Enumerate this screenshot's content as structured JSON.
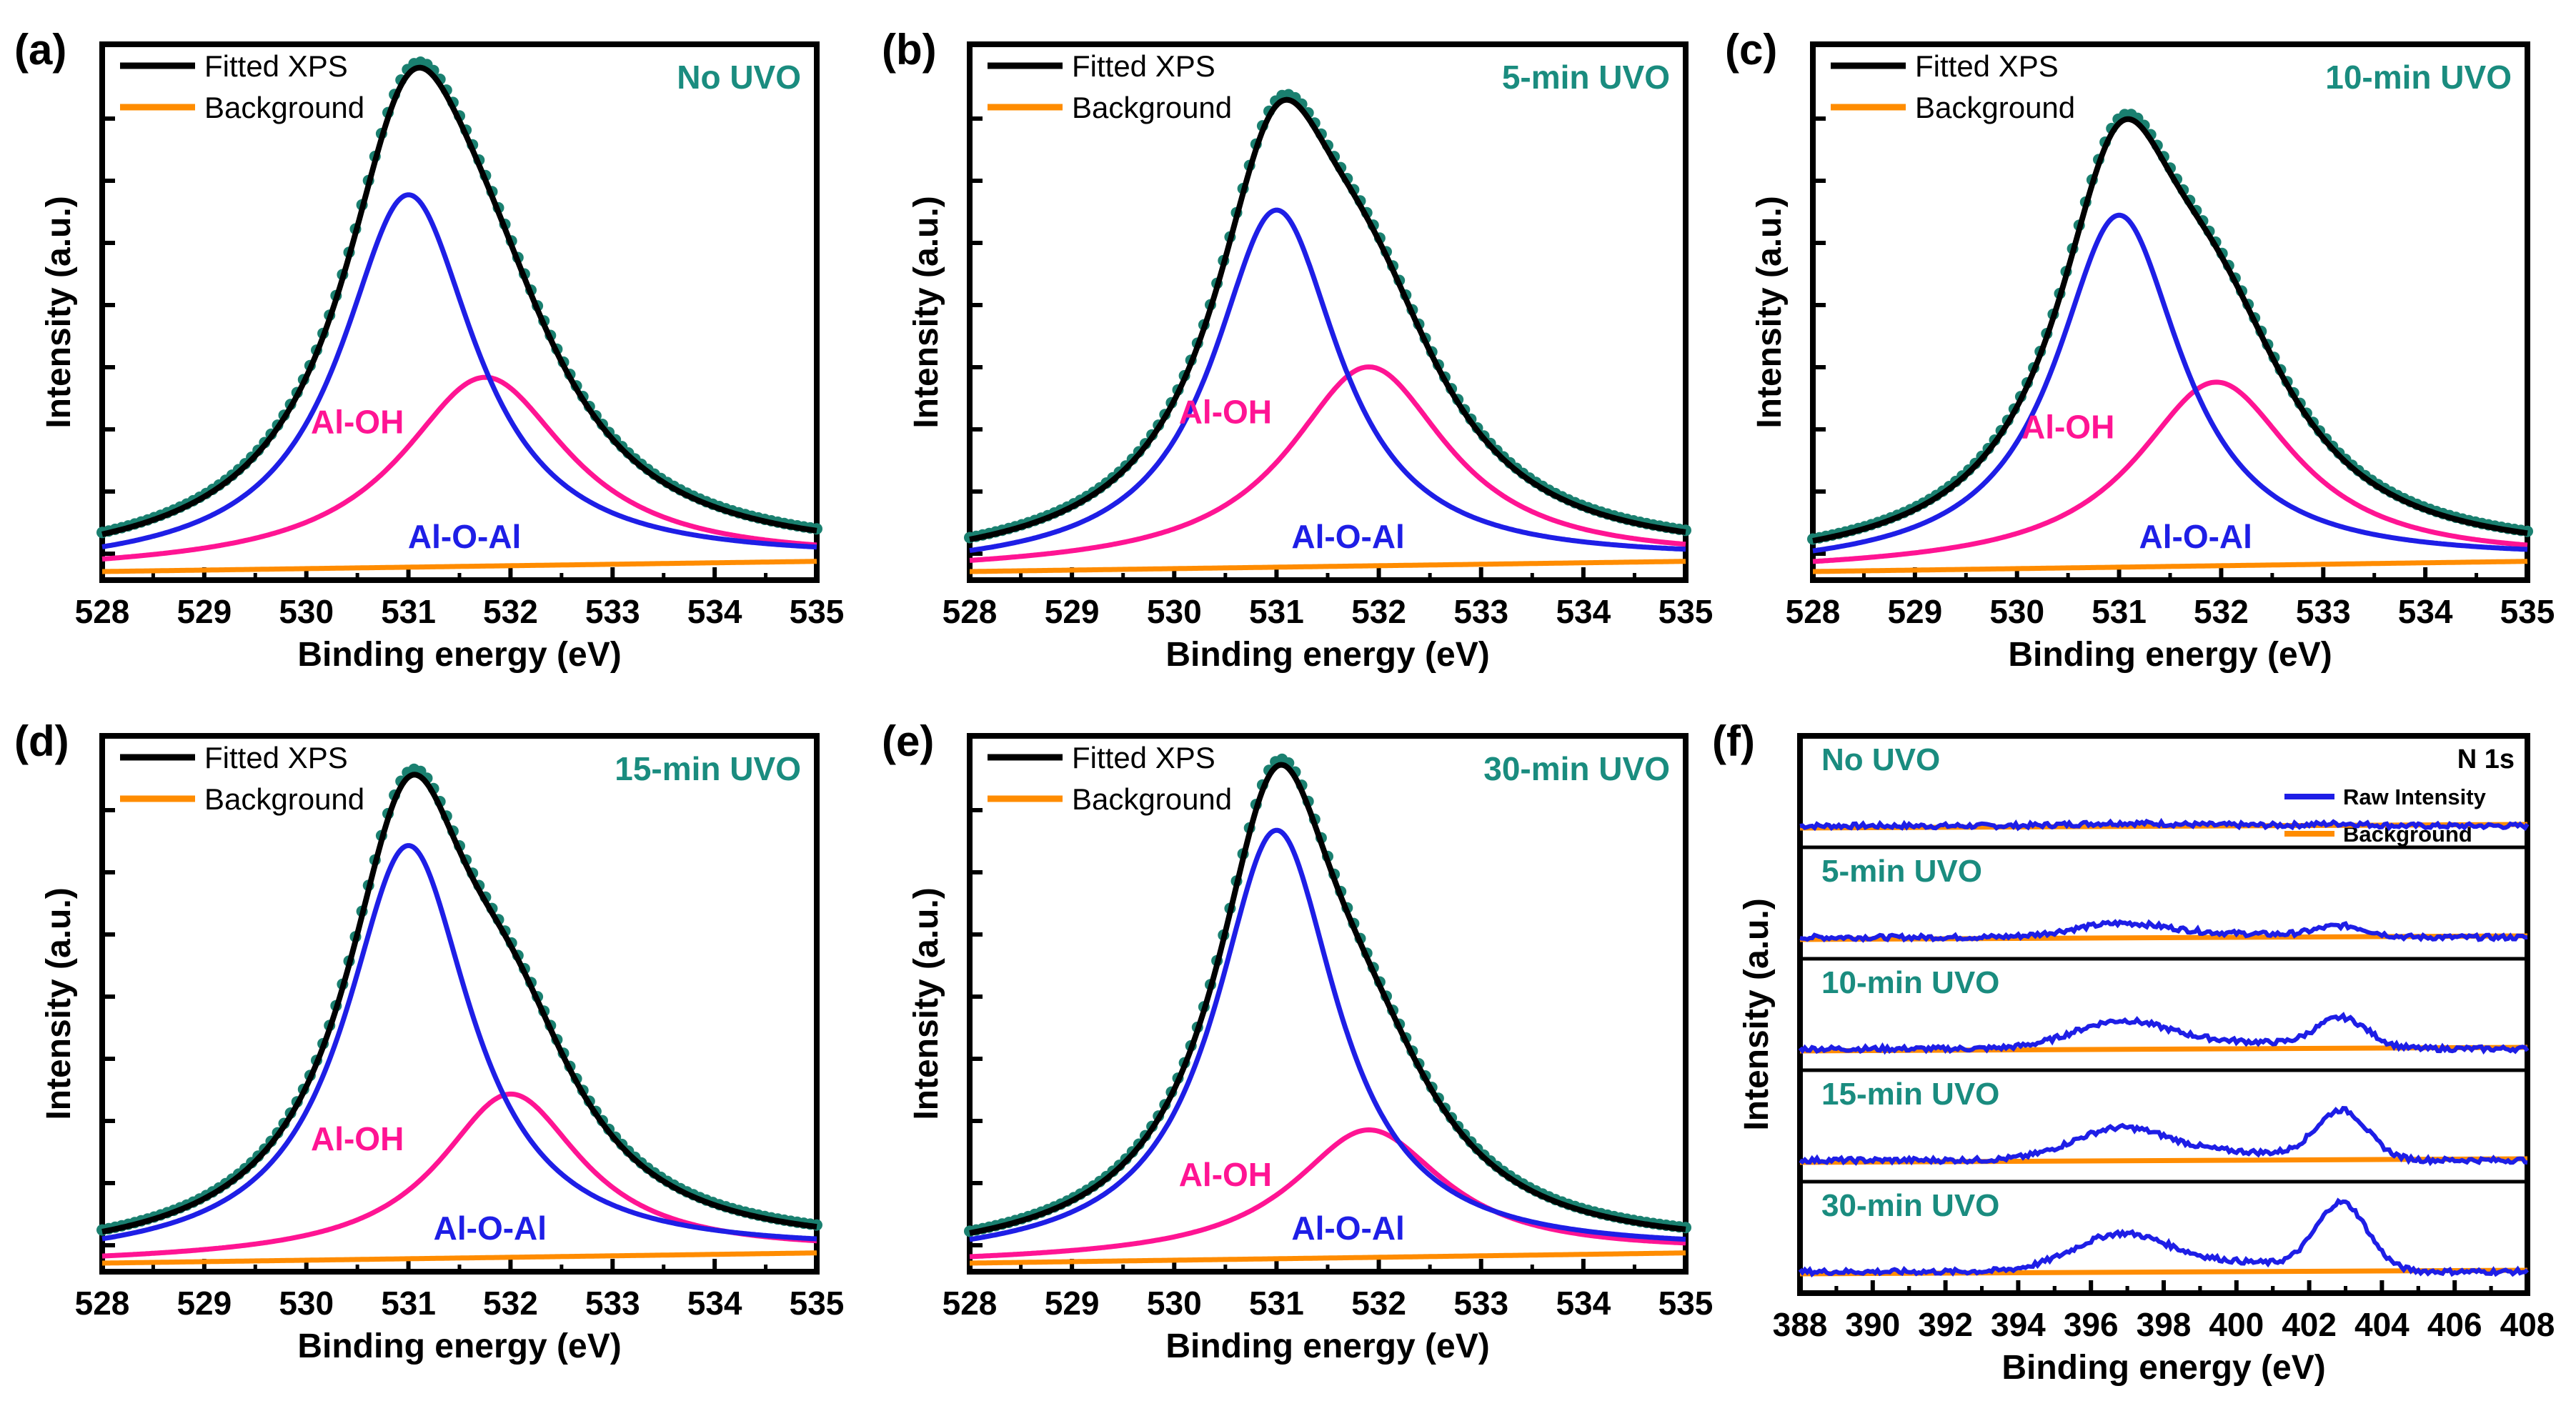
{
  "colors": {
    "fitted": "#000000",
    "background": "#ff8c00",
    "raw": "#1e1ee6",
    "al_o_al": "#1e1ee6",
    "al_oh": "#ff1493",
    "data_points": "#1a8070",
    "condition_label": "#1a8c7f"
  },
  "chart_data": [
    {
      "panel": "(a)",
      "type": "line",
      "condition": "No UVO",
      "xlabel": "Binding energy (eV)",
      "ylabel": "Intensity (a.u.)",
      "xlim": [
        528,
        535
      ],
      "ylim": [
        0,
        1
      ],
      "xticks": [
        "528",
        "529",
        "530",
        "531",
        "532",
        "533",
        "534",
        "535"
      ],
      "legend": [
        "Fitted XPS",
        "Background"
      ],
      "legend_position": "top-left",
      "peak_labels": {
        "al_oh": "Al-OH",
        "al_o_al": "Al-O-Al"
      },
      "components": [
        {
          "name": "Al-O-Al",
          "center": 531.0,
          "height": 0.73,
          "fwhm": 1.6
        },
        {
          "name": "Al-OH",
          "center": 531.75,
          "height": 0.37,
          "fwhm": 2.0
        }
      ],
      "baseline": [
        0.0,
        0.02
      ]
    },
    {
      "panel": "(b)",
      "type": "line",
      "condition": "5-min UVO",
      "xlabel": "Binding energy (eV)",
      "ylabel": "Intensity (a.u.)",
      "xlim": [
        528,
        535
      ],
      "ylim": [
        0,
        1
      ],
      "xticks": [
        "528",
        "529",
        "530",
        "531",
        "532",
        "533",
        "534",
        "535"
      ],
      "legend": [
        "Fitted XPS",
        "Background"
      ],
      "legend_position": "top-left",
      "peak_labels": {
        "al_oh": "Al-OH",
        "al_o_al": "Al-O-Al"
      },
      "components": [
        {
          "name": "Al-O-Al",
          "center": 531.0,
          "height": 0.7,
          "fwhm": 1.5
        },
        {
          "name": "Al-OH",
          "center": 531.9,
          "height": 0.39,
          "fwhm": 1.9
        }
      ],
      "baseline": [
        0.0,
        0.02
      ]
    },
    {
      "panel": "(c)",
      "type": "line",
      "condition": "10-min UVO",
      "xlabel": "Binding energy (eV)",
      "ylabel": "Intensity (a.u.)",
      "xlim": [
        528,
        535
      ],
      "ylim": [
        0,
        1
      ],
      "xticks": [
        "528",
        "529",
        "530",
        "531",
        "532",
        "533",
        "534",
        "535"
      ],
      "legend": [
        "Fitted XPS",
        "Background"
      ],
      "legend_position": "top-left",
      "peak_labels": {
        "al_oh": "Al-OH",
        "al_o_al": "Al-O-Al"
      },
      "components": [
        {
          "name": "Al-O-Al",
          "center": 531.0,
          "height": 0.69,
          "fwhm": 1.5
        },
        {
          "name": "Al-OH",
          "center": 531.95,
          "height": 0.36,
          "fwhm": 1.9
        }
      ],
      "baseline": [
        0.0,
        0.02
      ]
    },
    {
      "panel": "(d)",
      "type": "line",
      "condition": "15-min UVO",
      "xlabel": "Binding energy (eV)",
      "ylabel": "Intensity (a.u.)",
      "xlim": [
        528,
        535
      ],
      "ylim": [
        0,
        1
      ],
      "xticks": [
        "528",
        "529",
        "530",
        "531",
        "532",
        "533",
        "534",
        "535"
      ],
      "legend": [
        "Fitted XPS",
        "Background"
      ],
      "legend_position": "top-left",
      "peak_labels": {
        "al_oh": "Al-OH",
        "al_o_al": "Al-O-Al"
      },
      "components": [
        {
          "name": "Al-O-Al",
          "center": 531.0,
          "height": 0.81,
          "fwhm": 1.5
        },
        {
          "name": "Al-OH",
          "center": 532.0,
          "height": 0.32,
          "fwhm": 1.7
        }
      ],
      "baseline": [
        0.0,
        0.02
      ]
    },
    {
      "panel": "(e)",
      "type": "line",
      "condition": "30-min UVO",
      "xlabel": "Binding energy (eV)",
      "ylabel": "Intensity (a.u.)",
      "xlim": [
        528,
        535
      ],
      "ylim": [
        0,
        1
      ],
      "xticks": [
        "528",
        "529",
        "530",
        "531",
        "532",
        "533",
        "534",
        "535"
      ],
      "legend": [
        "Fitted XPS",
        "Background"
      ],
      "legend_position": "top-left",
      "peak_labels": {
        "al_oh": "Al-OH",
        "al_o_al": "Al-O-Al"
      },
      "components": [
        {
          "name": "Al-O-Al",
          "center": 531.0,
          "height": 0.84,
          "fwhm": 1.45
        },
        {
          "name": "Al-OH",
          "center": 531.9,
          "height": 0.25,
          "fwhm": 1.8
        }
      ],
      "baseline": [
        0.0,
        0.02
      ]
    },
    {
      "panel": "(f)",
      "type": "line",
      "title": "N 1s",
      "xlabel": "Binding energy (eV)",
      "ylabel": "Intensity (a.u.)",
      "xlim": [
        388,
        408
      ],
      "xticks": [
        "388",
        "390",
        "392",
        "394",
        "396",
        "398",
        "400",
        "402",
        "404",
        "406",
        "408"
      ],
      "legend": [
        "Raw Intensity",
        "Background"
      ],
      "legend_position": "top-right",
      "stacked_conditions": [
        {
          "label": "No UVO",
          "peak1": 0.05,
          "peak2": 0.04
        },
        {
          "label": "5-min UVO",
          "peak1": 0.25,
          "peak2": 0.2
        },
        {
          "label": "10-min UVO",
          "peak1": 0.5,
          "peak2": 0.55
        },
        {
          "label": "15-min UVO",
          "peak1": 0.58,
          "peak2": 0.9
        },
        {
          "label": "30-min UVO",
          "peak1": 0.68,
          "peak2": 1.25
        }
      ],
      "peak_centers": [
        396.8,
        402.9
      ]
    }
  ]
}
